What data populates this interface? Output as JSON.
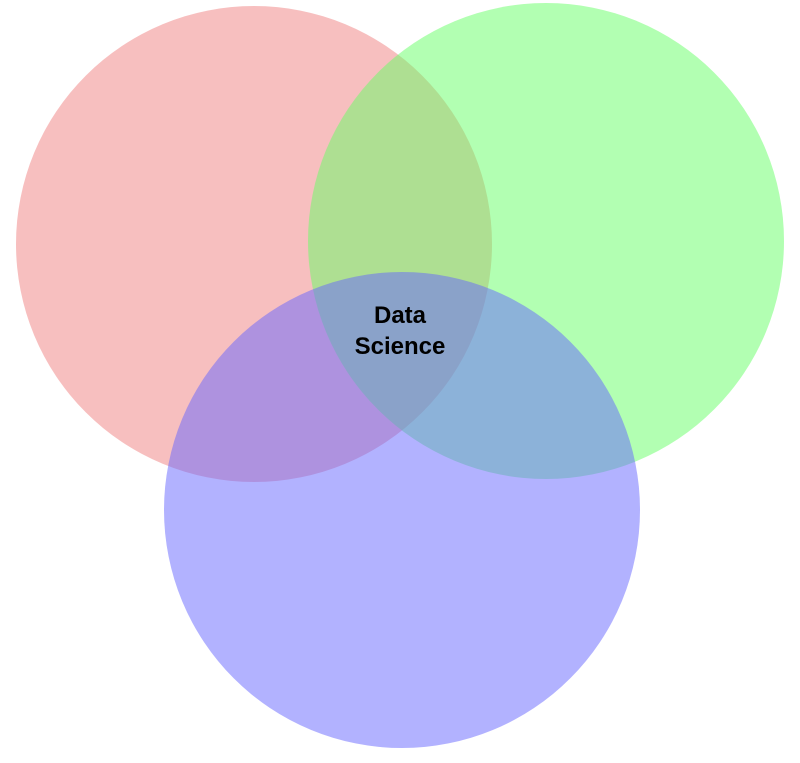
{
  "diagram": {
    "type": "venn",
    "circles": [
      {
        "id": "red",
        "color": "#f08080",
        "opacity": 0.5
      },
      {
        "id": "green",
        "color": "#66ff66",
        "opacity": 0.5
      },
      {
        "id": "blue",
        "color": "#6666ff",
        "opacity": 0.5
      }
    ],
    "center_label": {
      "line1": "Data",
      "line2": "Science"
    }
  }
}
